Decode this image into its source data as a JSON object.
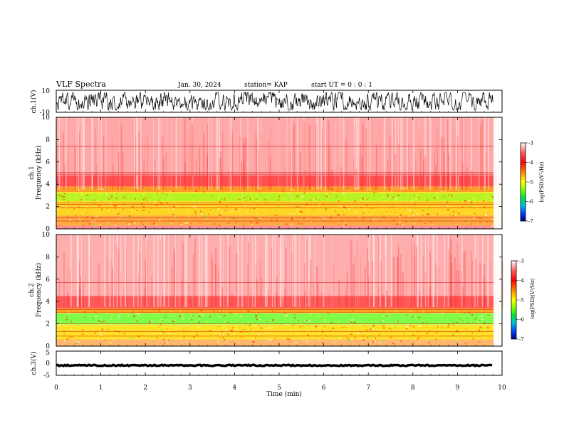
{
  "header": {
    "title": "VLF Spectra",
    "date": "Jan. 30, 2024",
    "station": "station= KAP",
    "start": "start UT =  0 : 0 : 1"
  },
  "chart_data": [
    {
      "type": "line",
      "name": "ch1-waveform",
      "ylabel": "ch.1(V)",
      "ylim": [
        -10,
        10
      ],
      "yticks": [
        "10",
        "-10"
      ],
      "x_range_min": [
        0,
        9.8
      ],
      "amplitude_range": [
        -8,
        8
      ]
    },
    {
      "type": "heatmap",
      "name": "ch1-spectrogram",
      "ylabel_line1": "ch.1",
      "ylabel_line2": "Frequency (kHz)",
      "ylim": [
        0,
        10
      ],
      "yticks": [
        "0",
        "2",
        "4",
        "6",
        "8",
        "10"
      ],
      "colorbar": {
        "label": "log(PSD)(V²/Hz)",
        "range": [
          -7,
          -3
        ],
        "ticks": [
          "-3",
          "-4",
          "-5",
          "-6",
          "-7"
        ]
      }
    },
    {
      "type": "heatmap",
      "name": "ch2-spectrogram",
      "ylabel_line1": "ch.2",
      "ylabel_line2": "Frequency (kHz)",
      "ylim": [
        0,
        10
      ],
      "yticks": [
        "0",
        "2",
        "4",
        "6",
        "8",
        "10"
      ],
      "colorbar": {
        "label": "log(PSD)(V²/Hz)",
        "range": [
          -7,
          -3
        ],
        "ticks": [
          "-3",
          "-4",
          "-5",
          "-6",
          "-7"
        ]
      }
    },
    {
      "type": "line",
      "name": "ch3-waveform",
      "ylabel": "ch.3(V)",
      "ylim": [
        -5,
        5
      ],
      "yticks": [
        "5",
        "0",
        "-5"
      ],
      "level": -0.9
    }
  ],
  "xaxis": {
    "label": "Time (min)",
    "range": [
      0,
      10
    ],
    "ticks": [
      "0",
      "1",
      "2",
      "3",
      "4",
      "5",
      "6",
      "7",
      "8",
      "9",
      "10"
    ]
  },
  "colors": {
    "colormap": [
      "#000080",
      "#0000ff",
      "#0080ff",
      "#00e0e0",
      "#00ff00",
      "#a0ff00",
      "#ffff00",
      "#ffa000",
      "#ff0000",
      "#ffffff"
    ],
    "axis": "#000000",
    "trace": "#000000"
  }
}
